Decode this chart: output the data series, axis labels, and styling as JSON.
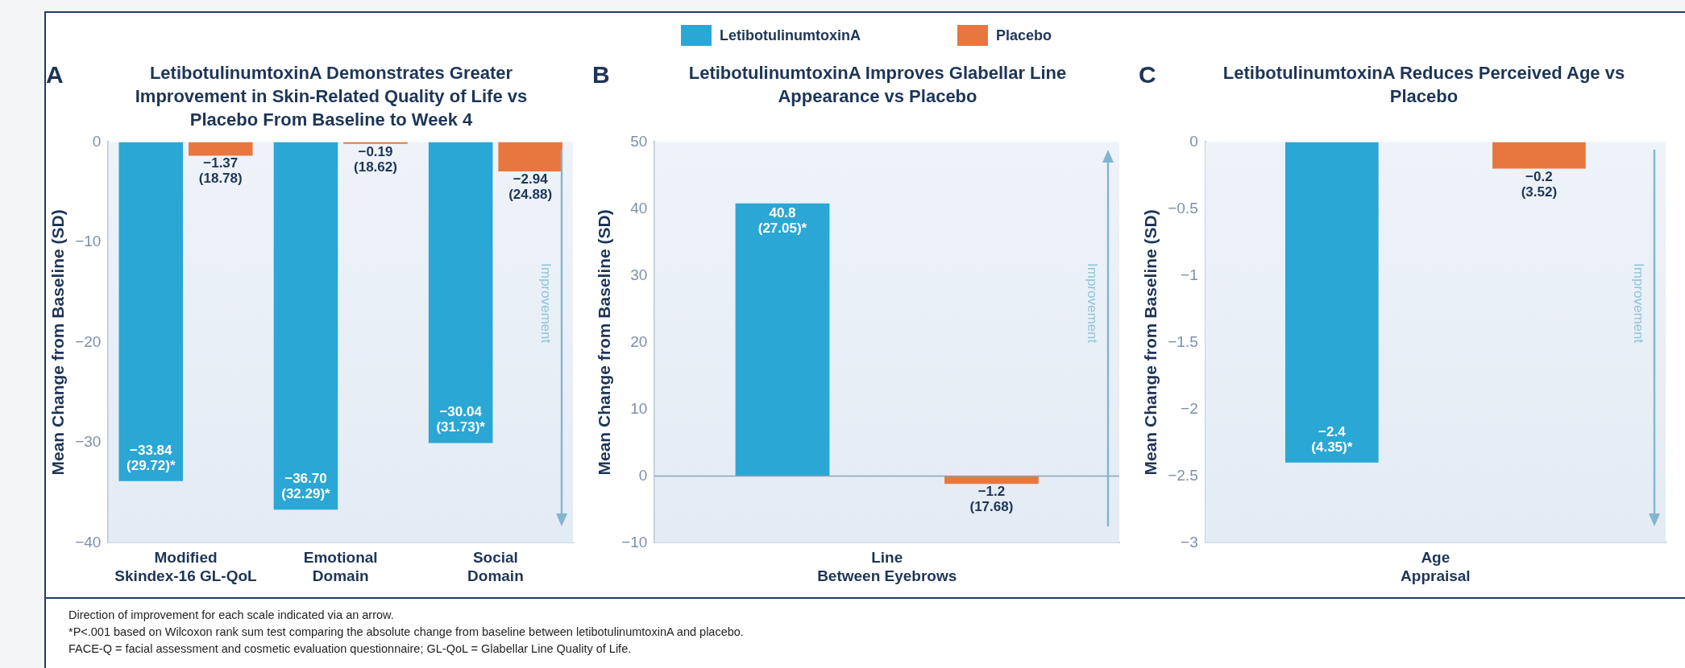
{
  "chart_data": [
    {
      "type": "bar",
      "title": "LetibotulinumtoxinA Demonstrates Greater Improvement in Skin-Related Quality of Life vs Placebo From Baseline to Week 4",
      "ylabel": "Mean Change from Baseline (SD)",
      "categories": [
        "Modified Skindex-16 GL-QoL",
        "Emotional Domain",
        "Social Domain"
      ],
      "series": [
        {
          "name": "LetibotulinumtoxinA",
          "color": "#2aa7d4",
          "values": [
            -33.84,
            -36.7,
            -30.04
          ],
          "value_labels": [
            "−33.84\n(29.72)*",
            "−36.70\n(32.29)*",
            "−30.04\n(31.73)*"
          ]
        },
        {
          "name": "Placebo",
          "color": "#e8773f",
          "values": [
            -1.37,
            -0.19,
            -2.94
          ],
          "value_labels": [
            "−1.37\n(18.78)",
            "−0.19\n(18.62)",
            "−2.94\n(24.88)"
          ]
        }
      ],
      "ylim": [
        -40,
        0
      ],
      "yticks": [
        {
          "value": 0,
          "label": "0"
        },
        {
          "value": -10,
          "label": "−10"
        },
        {
          "value": -20,
          "label": "−20"
        },
        {
          "value": -30,
          "label": "−30"
        },
        {
          "value": -40,
          "label": "−40"
        }
      ],
      "grid": false,
      "legend": "top",
      "annotations": [
        "A",
        "Improvement",
        "Direction of improvement for each scale indicated via an arrow.",
        "*P<.001 based on Wilcoxon rank sum test comparing the absolute change from baseline between letibotulinumtoxinA and placebo.",
        "FACE-Q = facial assessment and cosmetic evaluation questionnaire; GL-QoL = Glabellar Line Quality of Life."
      ]
    },
    {
      "type": "bar",
      "title": "LetibotulinumtoxinA Improves Glabellar Line Appearance vs Placebo",
      "ylabel": "Mean Change from Baseline (SD)",
      "categories": [
        "Line Between Eyebrows"
      ],
      "series": [
        {
          "color": "#2aa7d4",
          "values": [
            40.8
          ],
          "value_labels": [
            "40.8\n(27.05)*"
          ]
        },
        {
          "color": "#e8773f",
          "values": [
            -1.2
          ],
          "value_labels": [
            "−1.2\n(17.68)"
          ]
        }
      ],
      "ylim": [
        -10,
        50
      ],
      "yticks": [
        {
          "value": -10,
          "label": "−10"
        },
        0,
        10,
        20,
        30,
        40,
        50
      ],
      "ref_lines": [
        {
          "axis": "y",
          "value": 0,
          "color": "#8aa4bd"
        }
      ],
      "grid": false,
      "annotations": [
        "B",
        "Improvement"
      ]
    },
    {
      "type": "bar",
      "title": "LetibotulinumtoxinA Reduces Perceived Age vs Placebo",
      "ylabel": "Mean Change from Baseline (SD)",
      "categories": [
        "Age Appraisal"
      ],
      "series": [
        {
          "color": "#2aa7d4",
          "values": [
            -2.4
          ],
          "value_labels": [
            "−2.4\n(4.35)*"
          ]
        },
        {
          "color": "#e8773f",
          "values": [
            -0.2
          ],
          "value_labels": [
            "−0.2\n(3.52)"
          ]
        }
      ],
      "ylim": [
        -3,
        0
      ],
      "yticks": [
        0,
        {
          "value": -0.5,
          "label": "−0.5"
        },
        {
          "value": -1,
          "label": "−1"
        },
        {
          "value": -1.5,
          "label": "−1.5"
        },
        {
          "value": -2,
          "label": "−2"
        },
        {
          "value": -2.5,
          "label": "−2.5"
        },
        {
          "value": -3,
          "label": "−3"
        }
      ],
      "grid": false,
      "annotations": [
        "C",
        "Improvement"
      ]
    }
  ]
}
